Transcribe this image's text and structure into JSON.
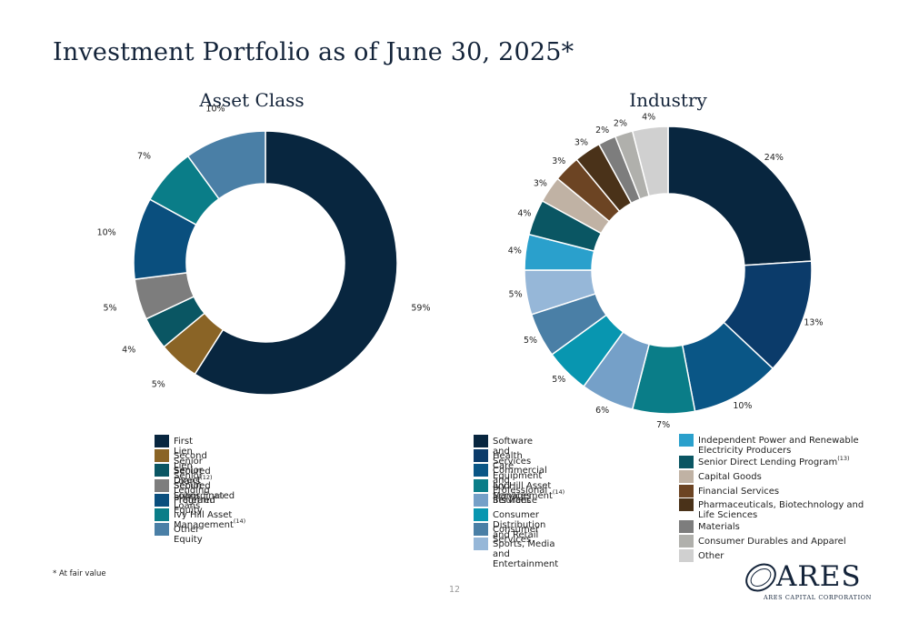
{
  "page": {
    "title": "Investment Portfolio as of June 30, 2025*",
    "footnote": "* At fair value",
    "page_number": "12",
    "logo": {
      "name": "ARES",
      "tagline": "ARES CAPITAL CORPORATION"
    }
  },
  "chart_data": [
    {
      "type": "pie",
      "title": "Asset Class",
      "donut": true,
      "legend_position": "bottom",
      "slices": [
        {
          "label": "First Lien Senior Secured Loans",
          "sup": "(12)",
          "value": 59,
          "display": "59%",
          "color": "#08263f"
        },
        {
          "label": "Second Lien Senior Secured Loans",
          "sup": "",
          "value": 5,
          "display": "5%",
          "color": "#8a6426"
        },
        {
          "label": "Senior Direct Lending Program",
          "sup": "(13)",
          "value": 4,
          "display": "4%",
          "color": "#0a5663"
        },
        {
          "label": "Senior Subordinated Loans",
          "sup": "",
          "value": 5,
          "display": "5%",
          "color": "#7d7d7d"
        },
        {
          "label": "Preferred Equity",
          "sup": "",
          "value": 10,
          "display": "10%",
          "color": "#0a4f7e"
        },
        {
          "label": "Ivy Hill Asset Management",
          "sup": "(14)",
          "value": 7,
          "display": "7%",
          "color": "#0a7d88"
        },
        {
          "label": "Other Equity",
          "sup": "",
          "value": 10,
          "display": "10%",
          "color": "#4a7fa6"
        }
      ]
    },
    {
      "type": "pie",
      "title": "Industry",
      "donut": true,
      "legend_position": "bottom",
      "slices": [
        {
          "label": "Software and Services",
          "sup": "",
          "value": 24,
          "display": "24%",
          "color": "#08263f"
        },
        {
          "label": "Health Care Equipment and Services",
          "sup": "",
          "value": 13,
          "display": "13%",
          "color": "#0b3b6a"
        },
        {
          "label": "Commercial and Professional Services",
          "sup": "",
          "value": 10,
          "display": "10%",
          "color": "#0a5686"
        },
        {
          "label": "Ivy Hill Asset Management",
          "sup": "(14)",
          "value": 7,
          "display": "7%",
          "color": "#0a7d88"
        },
        {
          "label": "Insurance",
          "sup": "",
          "value": 6,
          "display": "6%",
          "color": "#75a0c8"
        },
        {
          "label": "Consumer Distribution and Retail",
          "sup": "",
          "value": 5,
          "display": "5%",
          "color": "#0896b0"
        },
        {
          "label": "Consumer Services",
          "sup": "",
          "value": 5,
          "display": "5%",
          "color": "#4a7fa6"
        },
        {
          "label": "Sports, Media and Entertainment",
          "sup": "",
          "value": 5,
          "display": "5%",
          "color": "#96b7d8"
        },
        {
          "label": "Independent Power and Renewable Electricity Producers",
          "sup": "",
          "value": 4,
          "display": "4%",
          "color": "#2aa0cc"
        },
        {
          "label": "Senior Direct Lending Program",
          "sup": "(13)",
          "value": 4,
          "display": "4%",
          "color": "#0a5663"
        },
        {
          "label": "Capital Goods",
          "sup": "",
          "value": 3,
          "display": "3%",
          "color": "#c0b2a4"
        },
        {
          "label": "Financial Services",
          "sup": "",
          "value": 3,
          "display": "3%",
          "color": "#6c4423"
        },
        {
          "label": "Pharmaceuticals, Biotechnology and Life Sciences",
          "sup": "",
          "value": 3,
          "display": "3%",
          "color": "#4a3219"
        },
        {
          "label": "Materials",
          "sup": "",
          "value": 2,
          "display": "2%",
          "color": "#7d7d7d"
        },
        {
          "label": "Consumer Durables and Apparel",
          "sup": "",
          "value": 2,
          "display": "2%",
          "color": "#b0b0ac"
        },
        {
          "label": "Other",
          "sup": "",
          "value": 4,
          "display": "4%",
          "color": "#d0d0d0"
        }
      ]
    }
  ]
}
